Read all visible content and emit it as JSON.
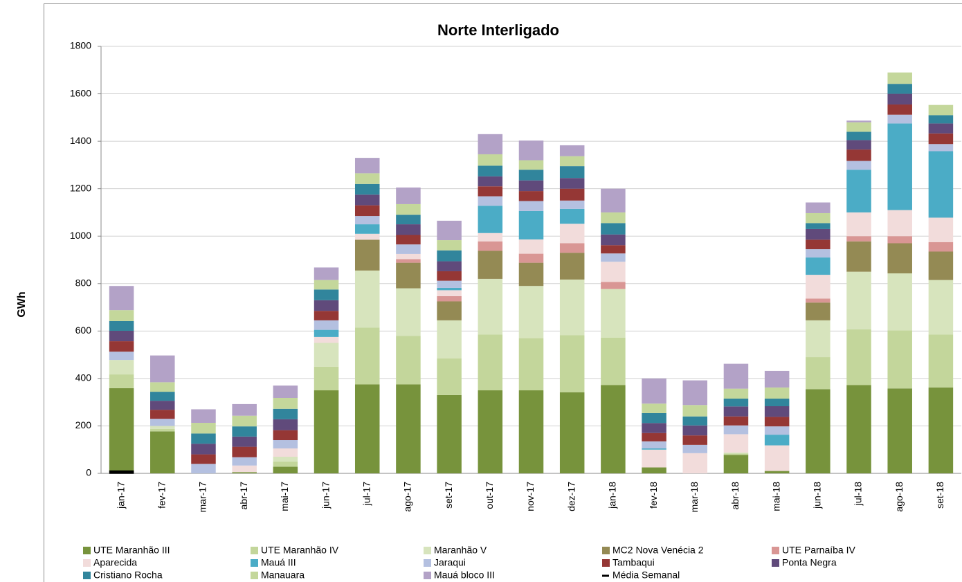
{
  "chart_data": {
    "type": "stacked-bar",
    "title": "Norte Interligado",
    "y_label": "GWh",
    "categories": [
      "jan-17",
      "fev-17",
      "mar-17",
      "abr-17",
      "mai-17",
      "jun-17",
      "jul-17",
      "ago-17",
      "set-17",
      "out-17",
      "nov-17",
      "dez-17",
      "jan-18",
      "fev-18",
      "mar-18",
      "abr-18",
      "mai-18",
      "jun-18",
      "jul-18",
      "ago-18",
      "set-18"
    ],
    "ylim": [
      0,
      1800
    ],
    "yticks": [
      0,
      200,
      400,
      600,
      800,
      1000,
      1200,
      1400,
      1600,
      1800
    ],
    "grid": true,
    "legend": "bottom",
    "series": [
      {
        "name": "UTE Maranhão III",
        "color": "#77933c",
        "values": [
          359,
          177,
          0,
          5,
          28,
          350,
          375,
          375,
          330,
          350,
          350,
          342,
          372,
          25,
          0,
          78,
          10,
          355,
          372,
          358,
          362
        ]
      },
      {
        "name": "UTE Maranhão IV",
        "color": "#c3d69b",
        "values": [
          58,
          10,
          0,
          0,
          22,
          100,
          240,
          205,
          155,
          235,
          220,
          240,
          200,
          0,
          0,
          5,
          0,
          135,
          235,
          245,
          223
        ]
      },
      {
        "name": "Maranhão V",
        "color": "#d7e4bd",
        "values": [
          61,
          13,
          0,
          0,
          20,
          100,
          240,
          200,
          160,
          235,
          220,
          235,
          205,
          0,
          0,
          5,
          0,
          155,
          243,
          240,
          230
        ]
      },
      {
        "name": "MC2 Nova Venécia 2",
        "color": "#948a54",
        "values": [
          0,
          0,
          0,
          0,
          0,
          0,
          130,
          108,
          80,
          118,
          98,
          113,
          0,
          0,
          0,
          0,
          0,
          75,
          128,
          127,
          120
        ]
      },
      {
        "name": "UTE Parnaíba IV",
        "color": "#d99694",
        "values": [
          0,
          0,
          0,
          0,
          0,
          0,
          0,
          15,
          22,
          40,
          38,
          40,
          30,
          0,
          0,
          0,
          0,
          17,
          22,
          30,
          40
        ]
      },
      {
        "name": "Aparecida",
        "color": "#f2dcdb",
        "values": [
          0,
          0,
          0,
          28,
          35,
          25,
          25,
          22,
          25,
          35,
          60,
          82,
          85,
          75,
          85,
          77,
          108,
          100,
          100,
          110,
          103
        ]
      },
      {
        "name": "Mauá III",
        "color": "#4bacc6",
        "values": [
          0,
          0,
          0,
          0,
          0,
          30,
          40,
          0,
          10,
          115,
          120,
          63,
          0,
          5,
          0,
          0,
          45,
          73,
          180,
          365,
          280
        ]
      },
      {
        "name": "Jaraqui",
        "color": "#b4c0e0",
        "values": [
          35,
          30,
          40,
          35,
          35,
          40,
          35,
          40,
          30,
          40,
          42,
          35,
          35,
          30,
          35,
          37,
          35,
          35,
          37,
          37,
          30
        ]
      },
      {
        "name": "Tambaqui",
        "color": "#953735",
        "values": [
          44,
          38,
          40,
          44,
          42,
          40,
          45,
          40,
          40,
          42,
          42,
          50,
          35,
          35,
          40,
          38,
          40,
          40,
          48,
          43,
          45
        ]
      },
      {
        "name": "Ponta Negra",
        "color": "#604a7b",
        "values": [
          44,
          38,
          45,
          43,
          46,
          45,
          45,
          45,
          42,
          42,
          45,
          45,
          45,
          42,
          42,
          42,
          45,
          45,
          40,
          45,
          42
        ]
      },
      {
        "name": "Cristiano Rocha",
        "color": "#31859c",
        "values": [
          41,
          38,
          43,
          43,
          44,
          45,
          45,
          40,
          46,
          45,
          45,
          50,
          48,
          42,
          38,
          33,
          32,
          25,
          35,
          42,
          35
        ]
      },
      {
        "name": "Manauara",
        "color": "#c4d79b",
        "values": [
          46,
          40,
          45,
          45,
          46,
          40,
          45,
          45,
          43,
          48,
          40,
          42,
          45,
          40,
          48,
          42,
          47,
          42,
          40,
          48,
          43
        ]
      },
      {
        "name": "Mauá bloco III",
        "color": "#b3a2c7",
        "values": [
          102,
          113,
          57,
          49,
          52,
          53,
          65,
          70,
          82,
          85,
          83,
          46,
          100,
          106,
          104,
          105,
          70,
          45,
          7,
          0,
          0
        ]
      },
      {
        "name": "Média Semanal",
        "color": "#000000",
        "style": "line",
        "values": [
          5,
          null,
          null,
          null,
          null,
          null,
          null,
          null,
          null,
          null,
          null,
          null,
          null,
          null,
          null,
          null,
          null,
          null,
          null,
          null,
          null
        ]
      }
    ]
  }
}
